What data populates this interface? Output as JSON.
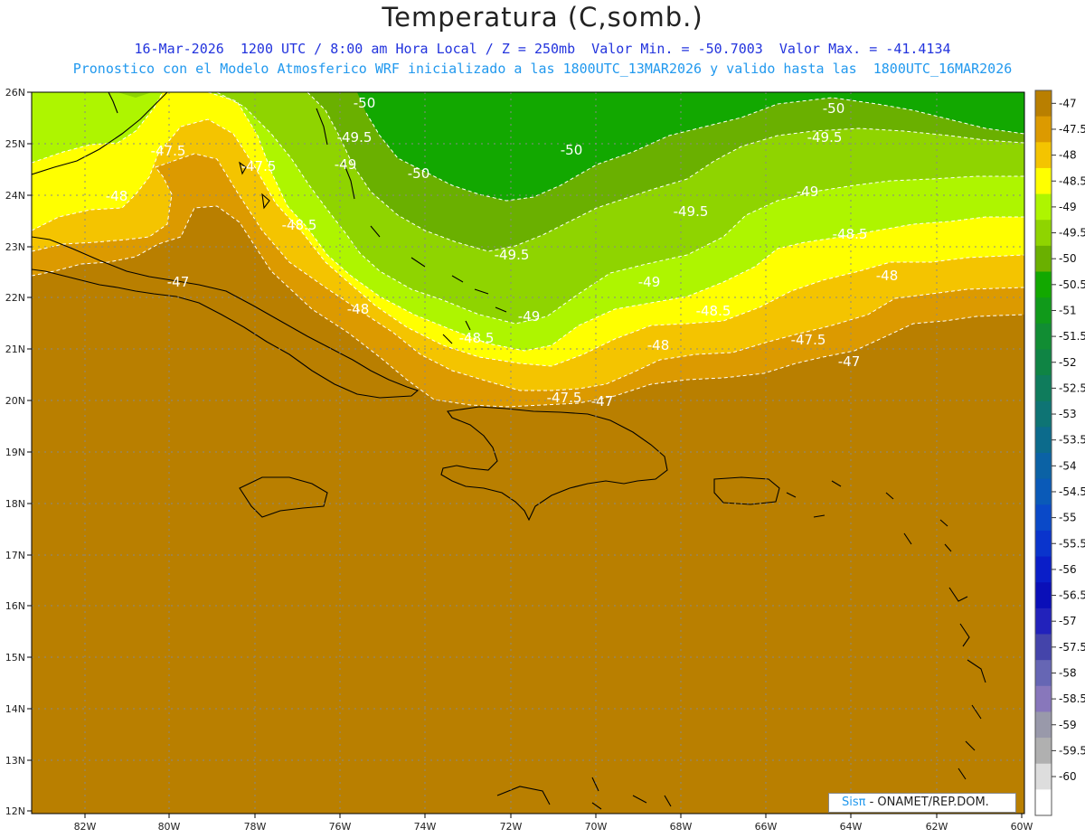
{
  "title": "Temperatura (C,somb.)",
  "subtitle_line1": "16-Mar-2026  1200 UTC / 8:00 am Hora Local / Z = 250mb  Valor Min. = -50.7003  Valor Max. = -41.4134",
  "subtitle_line2": "Pronostico con el Modelo Atmosferico WRF inicializado a las 1800UTC_13MAR2026 y valido hasta las  1800UTC_16MAR2026",
  "credit": {
    "brand": "Sisπ",
    "org": " - ONAMET/REP.DOM."
  },
  "colors": {
    "bands": {
      "-47": "#b97f00",
      "-47.5": "#dc9a00",
      "-48": "#f4c400",
      "-48.5": "#ffff00",
      "-49": "#aef500",
      "-49.5": "#8fd400",
      "-50": "#6ab000",
      "-50.5": "#12a800"
    },
    "contour_line": "#ffffff",
    "coast": "#000000"
  },
  "colorbar": {
    "labels": [
      "-47",
      "-47.5",
      "-48",
      "-48.5",
      "-49",
      "-49.5",
      "-50",
      "-50.5",
      "-51",
      "-51.5",
      "-52",
      "-52.5",
      "-53",
      "-53.5",
      "-54",
      "-54.5",
      "-55",
      "-55.5",
      "-56",
      "-56.5",
      "-57",
      "-57.5",
      "-58",
      "-58.5",
      "-59",
      "-59.5",
      "-60"
    ],
    "colors": [
      "#b97f00",
      "#dc9a00",
      "#f4c400",
      "#ffff00",
      "#aef500",
      "#8fd400",
      "#6ab000",
      "#12a800",
      "#109a1a",
      "#118d33",
      "#0f8444",
      "#0f7c5c",
      "#0e7474",
      "#0c6b8c",
      "#0b62a5",
      "#0a5ab8",
      "#0a49c8",
      "#0a34cc",
      "#0a1ec8",
      "#0a0fb8",
      "#2222bb",
      "#4444aa",
      "#6666b4",
      "#8877bb",
      "#9999aa",
      "#b0b0b0",
      "#dddddd",
      "#ffffff"
    ]
  },
  "lat_labels": [
    "26N",
    "25N",
    "24N",
    "23N",
    "22N",
    "21N",
    "20N",
    "19N",
    "18N",
    "17N",
    "16N",
    "15N",
    "14N",
    "13N",
    "12N"
  ],
  "lon_labels": [
    "82W",
    "80W",
    "78W",
    "76W",
    "74W",
    "72W",
    "70W",
    "68W",
    "66W",
    "64W",
    "62W",
    "60W"
  ],
  "contour_labels": [
    "-50",
    "-49.5",
    "-47.5",
    "-49",
    "-50",
    "-50",
    "-48",
    "-47.5",
    "-48.5",
    "-49.5",
    "-50",
    "-49.5",
    "-49",
    "-48.5",
    "-47",
    "-49.5",
    "-48.5",
    "-48",
    "-48",
    "-49",
    "-48.5",
    "-49",
    "-48.5",
    "-48",
    "-47.5",
    "-47.5",
    "-47",
    "-47"
  ]
}
